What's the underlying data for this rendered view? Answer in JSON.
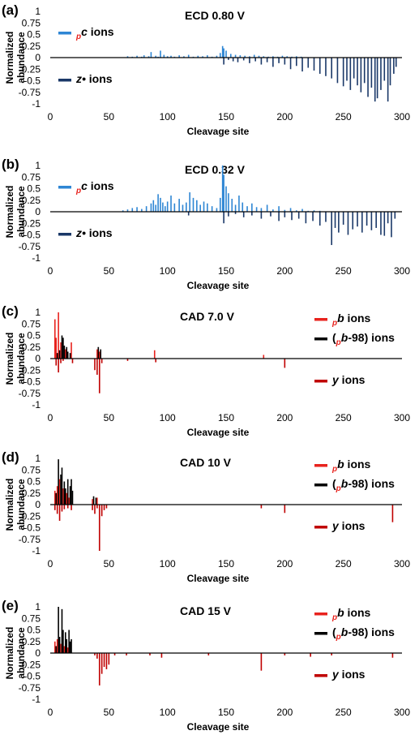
{
  "chart_data": [
    {
      "panel_label": "(a)",
      "type": "bar",
      "title": "ECD   0.80 V",
      "xlabel": "Cleavage site",
      "ylabel": "Normalized abundance",
      "xlim": [
        0,
        300
      ],
      "ylim": [
        -1,
        1
      ],
      "xticks": [
        "0",
        "50",
        "100",
        "150",
        "200",
        "250",
        "300"
      ],
      "yticks": [
        "1",
        "0.75",
        "0.5",
        "0.25",
        "0",
        "-0.25",
        "-0.5",
        "-0.75",
        "-1"
      ],
      "series": [
        {
          "name": "pc ions",
          "legend_sub": "p",
          "legend_main": "c",
          "legend_rest": " ions",
          "color": "#2e86d4",
          "x": [
            66,
            70,
            74,
            78,
            80,
            84,
            86,
            90,
            92,
            94,
            97,
            100,
            103,
            106,
            110,
            114,
            118,
            122,
            126,
            130,
            134,
            138,
            142,
            145,
            147,
            148,
            150,
            154,
            158,
            162,
            166,
            170,
            174,
            178,
            182,
            186,
            190,
            194,
            198,
            202,
            206,
            210,
            214
          ],
          "values": [
            0.03,
            0.02,
            0.04,
            0.02,
            0.05,
            0.03,
            0.12,
            0.04,
            0.02,
            0.15,
            0.06,
            0.03,
            0.04,
            0.02,
            0.05,
            0.03,
            0.06,
            0.02,
            0.04,
            0.03,
            0.05,
            0.02,
            0.04,
            0.1,
            0.25,
            0.2,
            0.15,
            0.08,
            0.06,
            0.05,
            0.04,
            0.03,
            0.06,
            0.04,
            0.03,
            0.02,
            0.03,
            0.02,
            0.04,
            0.03,
            0.02,
            0.03,
            0.02
          ]
        },
        {
          "name": "z• ions",
          "legend_sub": "",
          "legend_main": "z•",
          "legend_rest": " ions",
          "color": "#1a3868",
          "x": [
            148,
            152,
            156,
            160,
            165,
            170,
            175,
            180,
            185,
            190,
            195,
            200,
            205,
            210,
            215,
            220,
            225,
            230,
            235,
            240,
            245,
            250,
            253,
            256,
            259,
            262,
            265,
            268,
            271,
            274,
            277,
            279,
            282,
            285,
            288,
            290,
            293,
            295
          ],
          "values": [
            -0.15,
            -0.05,
            -0.08,
            -0.1,
            -0.06,
            -0.12,
            -0.08,
            -0.15,
            -0.1,
            -0.2,
            -0.12,
            -0.15,
            -0.25,
            -0.18,
            -0.3,
            -0.22,
            -0.28,
            -0.35,
            -0.4,
            -0.45,
            -0.55,
            -0.62,
            -0.5,
            -0.7,
            -0.45,
            -0.6,
            -0.75,
            -0.55,
            -0.85,
            -0.65,
            -0.95,
            -0.88,
            -0.7,
            -0.5,
            -0.95,
            -0.6,
            -0.35,
            -0.2
          ]
        }
      ]
    },
    {
      "panel_label": "(b)",
      "type": "bar",
      "title": "ECD   0.32 V",
      "xlabel": "Cleavage site",
      "ylabel": "Normalized abundance",
      "xlim": [
        0,
        300
      ],
      "ylim": [
        -1,
        1
      ],
      "xticks": [
        "0",
        "50",
        "100",
        "150",
        "200",
        "250",
        "300"
      ],
      "yticks": [
        "1",
        "0.75",
        "0.5",
        "0.25",
        "0",
        "-0.25",
        "-0.5",
        "-0.75",
        "-1"
      ],
      "series": [
        {
          "name": "pc ions",
          "legend_sub": "p",
          "legend_main": "c",
          "legend_rest": " ions",
          "color": "#2e86d4",
          "x": [
            62,
            66,
            70,
            74,
            78,
            82,
            86,
            88,
            90,
            92,
            94,
            96,
            98,
            100,
            103,
            106,
            110,
            113,
            116,
            119,
            122,
            125,
            128,
            131,
            134,
            138,
            142,
            145,
            147,
            148,
            150,
            152,
            155,
            158,
            161,
            164,
            168,
            172,
            176,
            180,
            185,
            190,
            195,
            200,
            205,
            210,
            215,
            220,
            225,
            230
          ],
          "values": [
            0.03,
            0.05,
            0.08,
            0.1,
            0.06,
            0.12,
            0.18,
            0.25,
            0.15,
            0.38,
            0.3,
            0.2,
            0.12,
            0.22,
            0.35,
            0.18,
            0.28,
            0.15,
            0.2,
            0.42,
            0.3,
            0.25,
            0.15,
            0.22,
            0.18,
            0.12,
            0.08,
            0.3,
            1.0,
            0.8,
            0.55,
            0.4,
            0.28,
            0.15,
            0.35,
            0.2,
            0.12,
            0.18,
            0.1,
            0.08,
            0.15,
            0.05,
            0.12,
            0.04,
            0.08,
            0.03,
            0.06,
            0.02,
            0.03,
            0.02
          ]
        },
        {
          "name": "z• ions",
          "legend_sub": "",
          "legend_main": "z•",
          "legend_rest": " ions",
          "color": "#1a3868",
          "x": [
            118,
            148,
            152,
            158,
            165,
            172,
            180,
            188,
            195,
            200,
            206,
            212,
            218,
            224,
            230,
            235,
            240,
            243,
            246,
            250,
            254,
            258,
            262,
            266,
            270,
            274,
            278,
            282,
            285,
            288,
            291,
            294
          ],
          "values": [
            -0.08,
            -0.25,
            -0.1,
            -0.05,
            -0.12,
            -0.08,
            -0.15,
            -0.1,
            -0.2,
            -0.12,
            -0.18,
            -0.15,
            -0.25,
            -0.2,
            -0.3,
            -0.22,
            -0.72,
            -0.35,
            -0.45,
            -0.28,
            -0.5,
            -0.38,
            -0.32,
            -0.45,
            -0.3,
            -0.4,
            -0.35,
            -0.5,
            -0.52,
            -0.25,
            -0.55,
            -0.15
          ]
        }
      ]
    },
    {
      "panel_label": "(c)",
      "type": "bar",
      "title": "CAD   7.0 V",
      "xlabel": "Cleavage site",
      "ylabel": "Normalized abundance",
      "xlim": [
        0,
        300
      ],
      "ylim": [
        -1,
        1
      ],
      "xticks": [
        "0",
        "50",
        "100",
        "150",
        "200",
        "250",
        "300"
      ],
      "yticks": [
        "1",
        "0.75",
        "0.5",
        "0.25",
        "0",
        "-0.25",
        "-0.5",
        "-0.75",
        "-1"
      ],
      "series": [
        {
          "name": "pb ions",
          "legend_sub": "p",
          "legend_main": "b",
          "legend_rest": " ions",
          "color": "#e8231e",
          "x": [
            4,
            5,
            7,
            9,
            13,
            18,
            40,
            42,
            89,
            182
          ],
          "values": [
            0.85,
            0.45,
            1.0,
            0.35,
            0.2,
            0.35,
            0.2,
            0.15,
            0.18,
            0.08
          ]
        },
        {
          "name": "(pb-98) ions",
          "legend_sub": "p",
          "legend_main": "b",
          "legend_rest": "-98) ions",
          "legend_pre": "(",
          "color": "#000000",
          "x": [
            6,
            8,
            10,
            11,
            12,
            14,
            15,
            17,
            41,
            43
          ],
          "values": [
            0.12,
            0.18,
            0.5,
            0.45,
            0.28,
            0.25,
            0.15,
            0.12,
            0.25,
            0.2
          ]
        },
        {
          "name": "y ions",
          "legend_sub": "",
          "legend_main": "y",
          "legend_rest": " ions",
          "color": "#c00000",
          "x": [
            5,
            7,
            9,
            11,
            19,
            38,
            40,
            42,
            44,
            66,
            90,
            200
          ],
          "values": [
            -0.15,
            -0.3,
            -0.1,
            -0.05,
            -0.1,
            -0.25,
            -0.35,
            -0.75,
            -0.1,
            -0.05,
            -0.08,
            -0.2
          ]
        }
      ]
    },
    {
      "panel_label": "(d)",
      "type": "bar",
      "title": "CAD   10 V",
      "xlabel": "Cleavage site",
      "ylabel": "Normalized abundance",
      "xlim": [
        0,
        300
      ],
      "ylim": [
        -1,
        1
      ],
      "xticks": [
        "0",
        "50",
        "100",
        "150",
        "200",
        "250",
        "300"
      ],
      "yticks": [
        "1",
        "0.75",
        "0.5",
        "0.25",
        "0",
        "-0.25",
        "-0.5",
        "-0.75",
        "-1"
      ],
      "series": [
        {
          "name": "pb ions",
          "legend_sub": "p",
          "legend_main": "b",
          "legend_rest": " ions",
          "color": "#e8231e",
          "x": [
            4,
            6,
            8,
            11,
            14,
            16,
            36,
            40
          ],
          "values": [
            0.3,
            0.4,
            0.55,
            0.35,
            0.25,
            0.15,
            0.12,
            0.15
          ]
        },
        {
          "name": "(pb-98) ions",
          "legend_sub": "p",
          "legend_main": "b",
          "legend_rest": "-98) ions",
          "legend_pre": "(",
          "color": "#000000",
          "x": [
            5,
            7,
            9,
            10,
            12,
            13,
            15,
            17,
            18,
            19,
            37,
            39
          ],
          "values": [
            0.25,
            0.98,
            0.65,
            0.8,
            0.5,
            0.35,
            0.55,
            0.4,
            0.55,
            0.3,
            0.18,
            0.15
          ]
        },
        {
          "name": "y ions",
          "legend_sub": "",
          "legend_main": "y",
          "legend_rest": " ions",
          "color": "#c00000",
          "x": [
            4,
            6,
            8,
            10,
            12,
            15,
            18,
            36,
            38,
            40,
            42,
            44,
            46,
            48,
            180,
            200,
            292
          ],
          "values": [
            -0.12,
            -0.2,
            -0.35,
            -0.15,
            -0.1,
            -0.08,
            -0.12,
            -0.12,
            -0.2,
            -0.08,
            -1.0,
            -0.25,
            -0.12,
            -0.08,
            -0.08,
            -0.18,
            -0.38
          ]
        }
      ]
    },
    {
      "panel_label": "(e)",
      "type": "bar",
      "title": "CAD   15 V",
      "xlabel": "Cleavage site",
      "ylabel": "Normalized abundance",
      "xlim": [
        0,
        300
      ],
      "ylim": [
        -1,
        1
      ],
      "xticks": [
        "0",
        "50",
        "100",
        "150",
        "200",
        "250",
        "300"
      ],
      "yticks": [
        "1",
        "0.75",
        "0.5",
        "0.25",
        "0",
        "-0.25",
        "-0.5",
        "-0.75",
        "-1"
      ],
      "series": [
        {
          "name": "pb ions",
          "legend_sub": "p",
          "legend_main": "b",
          "legend_rest": " ions",
          "color": "#e8231e",
          "x": [
            4,
            6,
            9,
            12,
            15
          ],
          "values": [
            0.25,
            0.3,
            0.2,
            0.15,
            0.12
          ]
        },
        {
          "name": "(pb-98) ions",
          "legend_sub": "p",
          "legend_main": "b",
          "legend_rest": "-98) ions",
          "legend_pre": "(",
          "color": "#000000",
          "x": [
            5,
            7,
            8,
            10,
            11,
            13,
            14,
            16,
            17,
            18
          ],
          "values": [
            0.15,
            1.0,
            0.35,
            0.95,
            0.5,
            0.45,
            0.3,
            0.5,
            0.25,
            0.3
          ]
        },
        {
          "name": "y ions",
          "legend_sub": "",
          "legend_main": "y",
          "legend_rest": " ions",
          "color": "#c00000",
          "x": [
            38,
            40,
            42,
            44,
            46,
            48,
            50,
            55,
            65,
            85,
            95,
            135,
            180,
            200,
            222,
            240,
            292
          ],
          "values": [
            -0.05,
            -0.12,
            -0.7,
            -0.45,
            -0.3,
            -0.35,
            -0.25,
            -0.05,
            -0.05,
            -0.05,
            -0.1,
            -0.05,
            -0.38,
            -0.05,
            -0.08,
            -0.05,
            -0.1
          ]
        }
      ]
    }
  ]
}
